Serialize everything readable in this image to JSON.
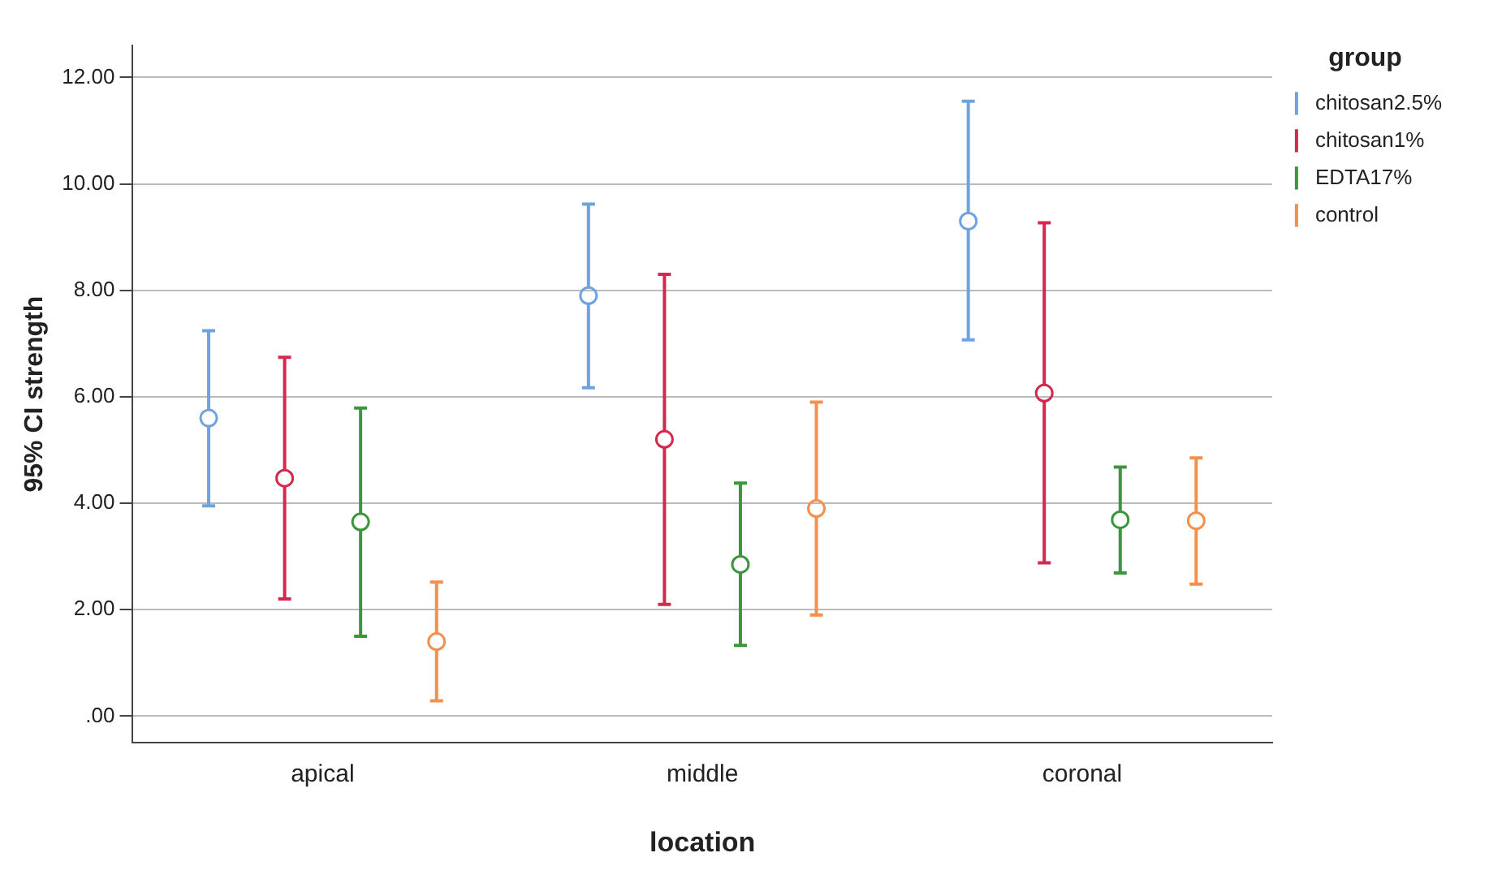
{
  "chart_data": {
    "type": "scatter",
    "xlabel": "location",
    "ylabel": "95% CI strength",
    "legend_title": "group",
    "legend": "top right",
    "grid": "y",
    "marker": "circle",
    "categories": [
      "apical",
      "middle",
      "coronal"
    ],
    "ylim": [
      -0.5,
      12.6
    ],
    "yticks": [
      {
        "value": 0,
        "label": ".00"
      },
      {
        "value": 2,
        "label": "2.00"
      },
      {
        "value": 4,
        "label": "4.00"
      },
      {
        "value": 6,
        "label": "6.00"
      },
      {
        "value": 8,
        "label": "8.00"
      },
      {
        "value": 10,
        "label": "10.00"
      },
      {
        "value": 12,
        "label": "12.00"
      }
    ],
    "series": [
      {
        "name": "chitosan2.5%",
        "color": "#6fa3e0",
        "values": [
          5.6,
          7.9,
          9.3
        ],
        "errors": [
          [
            3.95,
            7.24
          ],
          [
            6.17,
            9.62
          ],
          [
            7.07,
            11.55
          ]
        ]
      },
      {
        "name": "chitosan1%",
        "color": "#d6284e",
        "values": [
          4.47,
          5.2,
          6.07
        ],
        "errors": [
          [
            2.2,
            6.74
          ],
          [
            2.1,
            8.3
          ],
          [
            2.88,
            9.27
          ]
        ]
      },
      {
        "name": "EDTA17%",
        "color": "#3c963c",
        "values": [
          3.65,
          2.85,
          3.69
        ],
        "errors": [
          [
            1.5,
            5.79
          ],
          [
            1.33,
            4.38
          ],
          [
            2.69,
            4.68
          ]
        ]
      },
      {
        "name": "control",
        "color": "#f58f4c",
        "values": [
          1.4,
          3.9,
          3.67
        ],
        "errors": [
          [
            0.29,
            2.52
          ],
          [
            1.9,
            5.9
          ],
          [
            2.48,
            4.85
          ]
        ]
      }
    ]
  }
}
